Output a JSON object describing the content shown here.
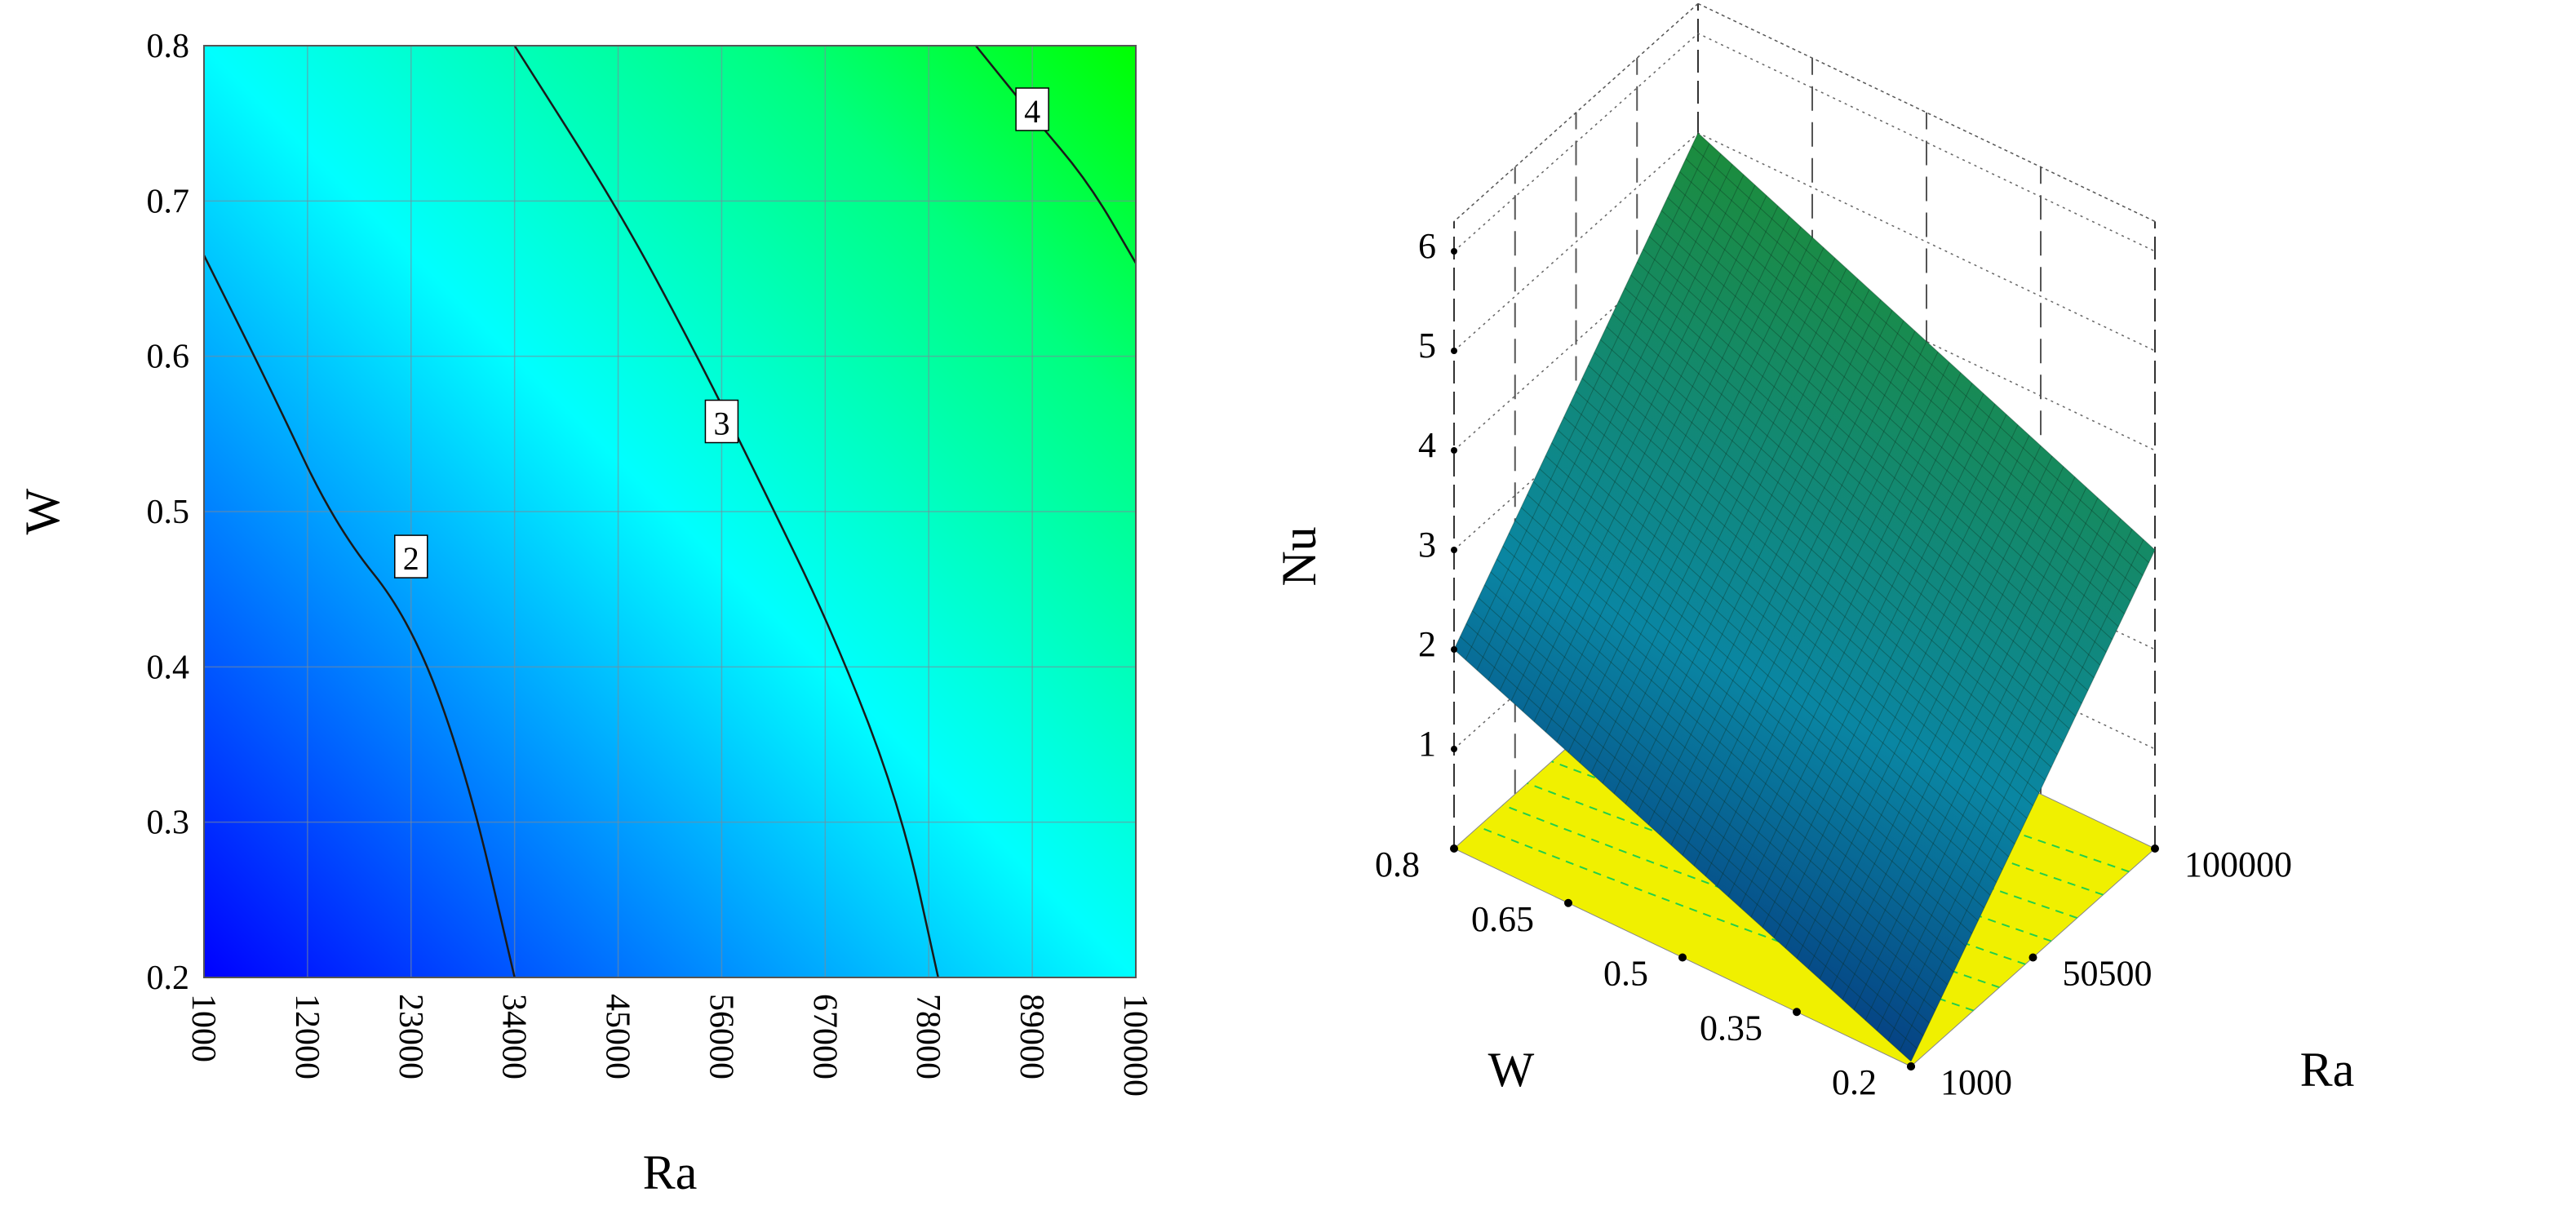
{
  "chart_data": [
    {
      "type": "contour",
      "xlabel": "Ra",
      "ylabel": "W",
      "xlim": [
        1000,
        100000
      ],
      "ylim": [
        0.2,
        0.8
      ],
      "x_ticks": [
        "1000",
        "12000",
        "23000",
        "34000",
        "45000",
        "56000",
        "67000",
        "78000",
        "89000",
        "100000"
      ],
      "y_ticks": [
        "0.2",
        "0.3",
        "0.4",
        "0.5",
        "0.6",
        "0.7",
        "0.8"
      ],
      "grid": true,
      "colormap": [
        "#0000ff",
        "#00ffff",
        "#00ff00"
      ],
      "contour_levels": [
        {
          "level": 2,
          "label": "2",
          "points": [
            [
              1000,
              0.665
            ],
            [
              8000,
              0.58
            ],
            [
              15000,
              0.49
            ],
            [
              23000,
              0.43
            ],
            [
              29000,
              0.33
            ],
            [
              34000,
              0.2
            ]
          ]
        },
        {
          "level": 3,
          "label": "3",
          "points": [
            [
              34000,
              0.8
            ],
            [
              45000,
              0.695
            ],
            [
              53000,
              0.605
            ],
            [
              60000,
              0.52
            ],
            [
              68000,
              0.42
            ],
            [
              75000,
              0.31
            ],
            [
              79000,
              0.2
            ]
          ]
        },
        {
          "level": 4,
          "label": "4",
          "points": [
            [
              83000,
              0.8
            ],
            [
              89000,
              0.755
            ],
            [
              95000,
              0.712
            ],
            [
              100000,
              0.66
            ]
          ]
        }
      ]
    },
    {
      "type": "surface3d",
      "title": "",
      "xlabel": "Ra",
      "ylabel": "W",
      "zlabel": "Nu",
      "xlim": [
        1000,
        100000
      ],
      "ylim": [
        0.2,
        0.8
      ],
      "zlim": [
        0,
        6
      ],
      "x_ticks": [
        "1000",
        "50500",
        "100000"
      ],
      "y_ticks": [
        "0.2",
        "0.35",
        "0.5",
        "0.65",
        "0.8"
      ],
      "z_ticks": [
        "1",
        "2",
        "3",
        "4",
        "5",
        "6"
      ],
      "surface_corners": [
        {
          "Ra": 1000,
          "W": 0.2,
          "Nu": 0.05
        },
        {
          "Ra": 1000,
          "W": 0.8,
          "Nu": 2.0
        },
        {
          "Ra": 100000,
          "W": 0.2,
          "Nu": 3.0
        },
        {
          "Ra": 100000,
          "W": 0.8,
          "Nu": 5.0
        }
      ],
      "surface_colors": [
        "#003a7a",
        "#0a8fa0",
        "#1a8a3a"
      ],
      "floor_color": "#f0f000"
    }
  ]
}
